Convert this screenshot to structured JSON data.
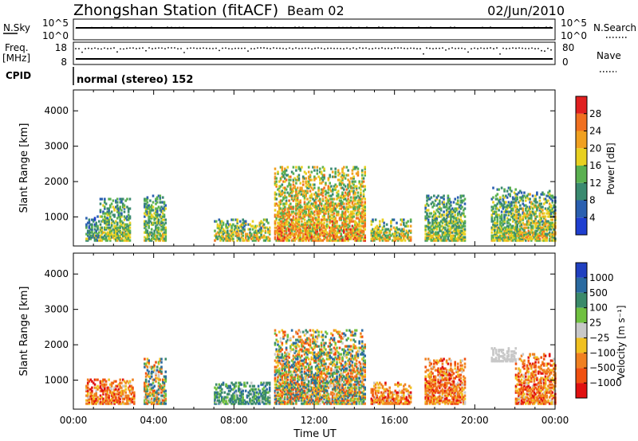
{
  "header": {
    "station": "Zhongshan Station (fitACF)",
    "beam": "Beam 02",
    "date": "02/Jun/2010"
  },
  "top_panels": {
    "nsky_label": "N.Sky",
    "nsky_ticks": [
      "10^5",
      "10^0"
    ],
    "nsearch_label": "N.Search",
    "nsearch_ticks": [
      "10^5",
      "10^0"
    ],
    "freq_label": "Freq.",
    "freq_unit": "[MHz]",
    "freq_ticks": [
      "18",
      "8"
    ],
    "nave_label": "Nave",
    "nave_ticks": [
      "80",
      "0"
    ],
    "cpid_label": "CPID",
    "cpid_text": "normal (stereo) 152"
  },
  "colors": {
    "power": [
      "#1f3fd0",
      "#2a5fb0",
      "#3a8a70",
      "#5ab050",
      "#e8d020",
      "#f0a020",
      "#f07020",
      "#e02020"
    ],
    "velocity": [
      "#2040c0",
      "#2a6aa0",
      "#3a8a6a",
      "#70c040",
      "#c8c8c8",
      "#f0c020",
      "#f08020",
      "#f05010",
      "#e01010"
    ],
    "ground_scatter": "#c8c8c8"
  },
  "chart_data": [
    {
      "type": "heatmap",
      "name": "power",
      "ylabel": "Slant Range [km]",
      "yticks": [
        "1000",
        "2000",
        "3000",
        "4000"
      ],
      "ylim": [
        180,
        4590
      ],
      "xlim": [
        0,
        24
      ],
      "colorbar_label": "Power [dB]",
      "colorbar_ticks": [
        "4",
        "8",
        "12",
        "16",
        "20",
        "24",
        "28"
      ],
      "colorbar_range": [
        0,
        32
      ],
      "echo_regions_approx": [
        {
          "hours": [
            0.6,
            1.3
          ],
          "range_km": [
            300,
            1000
          ],
          "level": "low-mid"
        },
        {
          "hours": [
            1.3,
            2.8
          ],
          "range_km": [
            300,
            1500
          ],
          "level": "mid"
        },
        {
          "hours": [
            3.5,
            4.6
          ],
          "range_km": [
            300,
            1600
          ],
          "level": "mid"
        },
        {
          "hours": [
            7.0,
            9.8
          ],
          "range_km": [
            300,
            900
          ],
          "level": "mid-high"
        },
        {
          "hours": [
            10.0,
            14.5
          ],
          "range_km": [
            300,
            2400
          ],
          "level": "high"
        },
        {
          "hours": [
            14.8,
            16.8
          ],
          "range_km": [
            300,
            900
          ],
          "level": "mid-high"
        },
        {
          "hours": [
            17.5,
            19.5
          ],
          "range_km": [
            300,
            1600
          ],
          "level": "mid"
        },
        {
          "hours": [
            20.8,
            22.0
          ],
          "range_km": [
            300,
            1800
          ],
          "level": "mid"
        },
        {
          "hours": [
            22.0,
            24.0
          ],
          "range_km": [
            300,
            1700
          ],
          "level": "mid-high"
        }
      ]
    },
    {
      "type": "heatmap",
      "name": "velocity",
      "ylabel": "Slant Range [km]",
      "yticks": [
        "1000",
        "2000",
        "3000",
        "4000"
      ],
      "ylim": [
        180,
        4590
      ],
      "xlim": [
        0,
        24
      ],
      "xticks": [
        "00:00",
        "04:00",
        "08:00",
        "12:00",
        "16:00",
        "20:00",
        "00:00"
      ],
      "xlabel": "Time UT",
      "colorbar_label": "Velocity [m s⁻¹]",
      "colorbar_ticks": [
        "1000",
        "500",
        "100",
        "25",
        "−25",
        "−100",
        "−500",
        "−1000"
      ],
      "echo_regions_approx": [
        {
          "hours": [
            0.6,
            3.0
          ],
          "range_km": [
            300,
            1000
          ],
          "velocity": "negative"
        },
        {
          "hours": [
            3.5,
            4.6
          ],
          "range_km": [
            300,
            1600
          ],
          "velocity": "mixed"
        },
        {
          "hours": [
            7.0,
            9.8
          ],
          "range_km": [
            300,
            900
          ],
          "velocity": "positive"
        },
        {
          "hours": [
            10.0,
            14.5
          ],
          "range_km": [
            300,
            2400
          ],
          "velocity": "mixed"
        },
        {
          "hours": [
            14.8,
            16.8
          ],
          "range_km": [
            300,
            900
          ],
          "velocity": "negative"
        },
        {
          "hours": [
            17.5,
            19.5
          ],
          "range_km": [
            300,
            1600
          ],
          "velocity": "negative"
        },
        {
          "hours": [
            20.8,
            22.0
          ],
          "range_km": [
            1500,
            1900
          ],
          "velocity": "ground scatter"
        },
        {
          "hours": [
            22.0,
            24.0
          ],
          "range_km": [
            300,
            1700
          ],
          "velocity": "negative"
        }
      ]
    }
  ]
}
